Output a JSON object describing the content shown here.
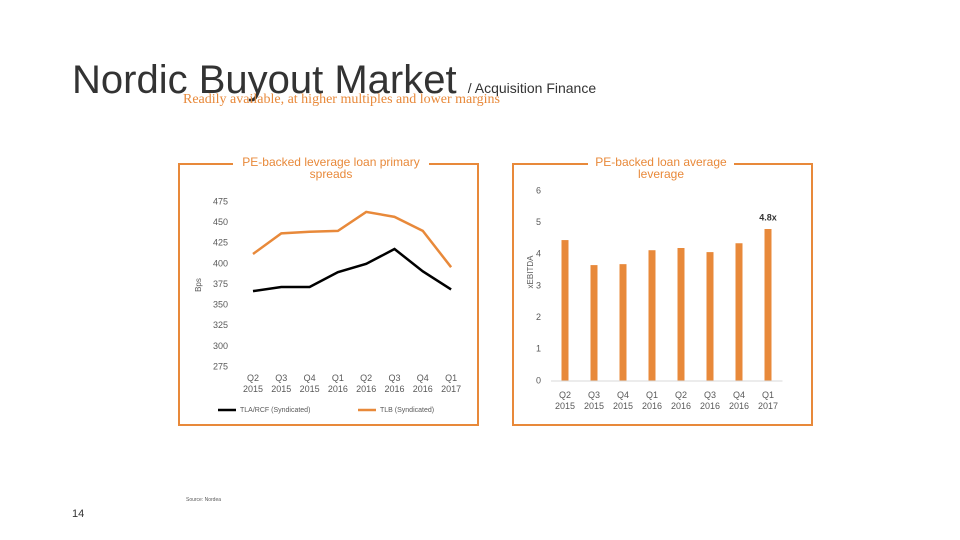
{
  "title": "Nordic Buyout Market",
  "title_suffix": "/ Acquisition Finance",
  "subtitle": "Readily available, at higher multiples and lower margins",
  "source": "Source: Nordea",
  "page_number": "14",
  "chart_data": [
    {
      "type": "line",
      "title": "PE-backed leverage loan primary spreads",
      "y_label": "Bps",
      "categories": [
        "Q2 2015",
        "Q3 2015",
        "Q4 2015",
        "Q1 2016",
        "Q2 2016",
        "Q3 2016",
        "Q4 2016",
        "Q1 2017"
      ],
      "series": [
        {
          "name": "TLA/RCF (Syndicated)",
          "color": "#000000",
          "values": [
            367,
            372,
            372,
            390,
            400,
            418,
            391,
            369
          ]
        },
        {
          "name": "TLB (Syndicated)",
          "color": "#e8893a",
          "values": [
            412,
            437,
            439,
            440,
            463,
            457,
            440,
            396
          ]
        }
      ],
      "ylim": [
        275,
        475
      ],
      "yticks": [
        275,
        300,
        325,
        350,
        375,
        400,
        425,
        450,
        475
      ]
    },
    {
      "type": "bar",
      "title": "PE-backed loan average leverage",
      "y_label": "xEBITDA",
      "categories": [
        "Q2 2015",
        "Q3 2015",
        "Q4 2015",
        "Q1 2016",
        "Q2 2016",
        "Q3 2016",
        "Q4 2016",
        "Q1 2017"
      ],
      "values": [
        4.45,
        3.66,
        3.69,
        4.13,
        4.2,
        4.07,
        4.35,
        4.8
      ],
      "value_labels": [
        null,
        null,
        null,
        null,
        null,
        null,
        null,
        "4.8x"
      ],
      "color": "#e8893a",
      "ylim": [
        0,
        6
      ],
      "yticks": [
        0,
        1,
        2,
        3,
        4,
        5,
        6
      ]
    }
  ]
}
